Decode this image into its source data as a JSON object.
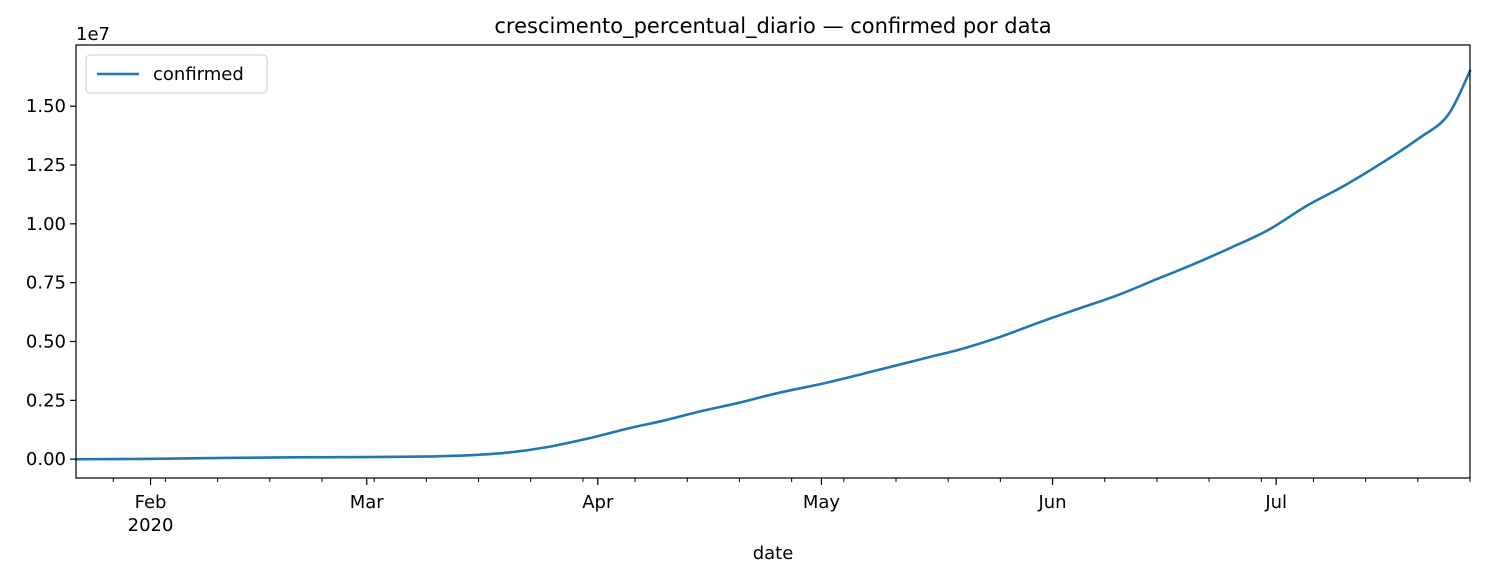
{
  "chart_data": {
    "type": "line",
    "title": "crescimento_percentual_diario — confirmed por data",
    "xlabel": "date",
    "ylabel": "",
    "y_offset_label": "1e7",
    "y_multiplier": 10000000,
    "xlim": [
      "2020-01-22",
      "2020-07-27"
    ],
    "ylim": [
      -0.08,
      1.76
    ],
    "yticks": [
      0.0,
      0.25,
      0.5,
      0.75,
      1.0,
      1.25,
      1.5
    ],
    "ytick_labels": [
      "0.00",
      "0.25",
      "0.50",
      "0.75",
      "1.00",
      "1.25",
      "1.50"
    ],
    "xticks_major": [
      {
        "date": "2020-02-01",
        "label": "Feb",
        "sublabel": "2020"
      },
      {
        "date": "2020-03-01",
        "label": "Mar",
        "sublabel": ""
      },
      {
        "date": "2020-04-01",
        "label": "Apr",
        "sublabel": ""
      },
      {
        "date": "2020-05-01",
        "label": "May",
        "sublabel": ""
      },
      {
        "date": "2020-06-01",
        "label": "Jun",
        "sublabel": ""
      },
      {
        "date": "2020-07-01",
        "label": "Jul",
        "sublabel": ""
      }
    ],
    "xticks_minor": [
      "2020-01-27",
      "2020-02-03",
      "2020-02-10",
      "2020-02-17",
      "2020-02-24",
      "2020-03-02",
      "2020-03-09",
      "2020-03-16",
      "2020-03-23",
      "2020-03-30",
      "2020-04-06",
      "2020-04-13",
      "2020-04-20",
      "2020-04-27",
      "2020-05-04",
      "2020-05-11",
      "2020-05-18",
      "2020-05-25",
      "2020-06-01",
      "2020-06-08",
      "2020-06-15",
      "2020-06-22",
      "2020-06-29",
      "2020-07-06",
      "2020-07-13",
      "2020-07-20",
      "2020-07-27"
    ],
    "grid": false,
    "legend_position": "top-left",
    "series": [
      {
        "name": "confirmed",
        "color": "#1f77b4",
        "x": [
          "2020-01-22",
          "2020-01-31",
          "2020-02-08",
          "2020-02-13",
          "2020-02-20",
          "2020-03-01",
          "2020-03-10",
          "2020-03-15",
          "2020-03-20",
          "2020-03-25",
          "2020-03-31",
          "2020-04-05",
          "2020-04-10",
          "2020-04-15",
          "2020-04-20",
          "2020-04-25",
          "2020-05-01",
          "2020-05-05",
          "2020-05-10",
          "2020-05-15",
          "2020-05-20",
          "2020-05-25",
          "2020-05-31",
          "2020-06-05",
          "2020-06-10",
          "2020-06-15",
          "2020-06-20",
          "2020-06-25",
          "2020-06-30",
          "2020-07-05",
          "2020-07-10",
          "2020-07-15",
          "2020-07-20",
          "2020-07-24",
          "2020-07-27"
        ],
        "y": [
          0.0,
          0.001,
          0.004,
          0.006,
          0.008,
          0.009,
          0.012,
          0.017,
          0.028,
          0.05,
          0.09,
          0.13,
          0.165,
          0.205,
          0.24,
          0.28,
          0.32,
          0.35,
          0.39,
          0.43,
          0.47,
          0.52,
          0.59,
          0.645,
          0.7,
          0.765,
          0.83,
          0.9,
          0.975,
          1.075,
          1.16,
          1.255,
          1.36,
          1.46,
          1.65
        ]
      }
    ]
  }
}
